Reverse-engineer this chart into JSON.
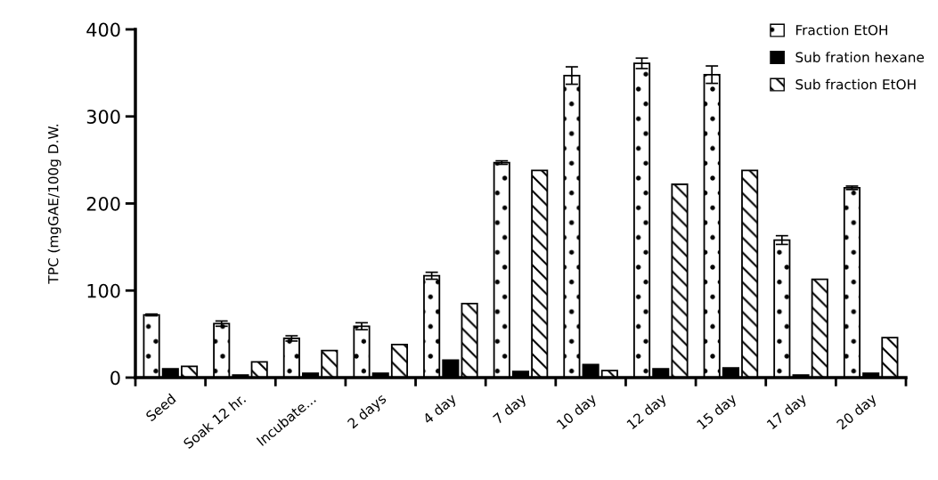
{
  "chart_data": {
    "type": "bar",
    "ylabel": "TPC (mgGAE/100g D.W.",
    "categories": [
      "Seed",
      "Soak 12 hr.",
      "Incubate...",
      "2 days",
      "4 day",
      "7 day",
      "10 day",
      "12 day",
      "15 day",
      "17 day",
      "20 day"
    ],
    "series": [
      {
        "name": "Fraction EtOH",
        "color": "#ffffff",
        "values": [
          72,
          62,
          45,
          59,
          117,
          247,
          347,
          361,
          348,
          158,
          218
        ],
        "errors": [
          1,
          3,
          3,
          4,
          4,
          2,
          10,
          6,
          10,
          5,
          2
        ]
      },
      {
        "name": "Sub fration hexane",
        "color": "#000000",
        "values": [
          10,
          3,
          5,
          5,
          20,
          7,
          15,
          10,
          11,
          3,
          5
        ]
      },
      {
        "name": "Sub fraction EtOH",
        "color": "#ffffff",
        "values": [
          13,
          18,
          31,
          38,
          85,
          238,
          8,
          222,
          238,
          113,
          46
        ]
      }
    ],
    "ylim": [
      0,
      400
    ],
    "yticks": [
      0,
      100,
      200,
      300,
      400
    ],
    "grid": false,
    "legend": "top right"
  }
}
